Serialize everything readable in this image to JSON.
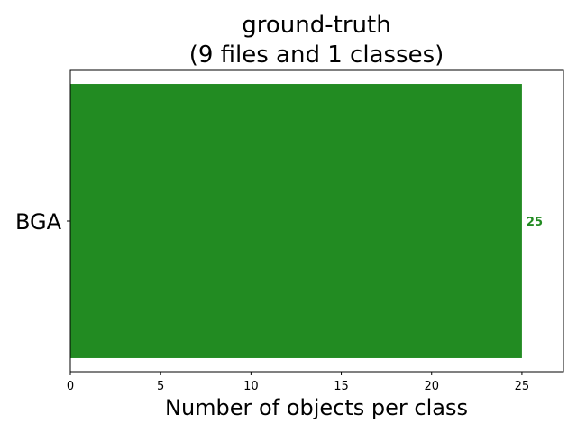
{
  "chart_data": {
    "type": "bar",
    "orientation": "horizontal",
    "title_lines": [
      "ground-truth",
      "(9 files and 1 classes)"
    ],
    "xlabel": "Number of objects per class",
    "ylabel": "",
    "categories": [
      "BGA"
    ],
    "values": [
      25
    ],
    "value_labels": [
      "25"
    ],
    "xlim": [
      0,
      27.3
    ],
    "xticks": [
      0,
      5,
      10,
      15,
      20,
      25
    ],
    "xtick_labels": [
      "0",
      "5",
      "10",
      "15",
      "20",
      "25"
    ],
    "bar_color": "#228b22",
    "label_color": "#228b22",
    "grid": false,
    "legend": "none"
  }
}
